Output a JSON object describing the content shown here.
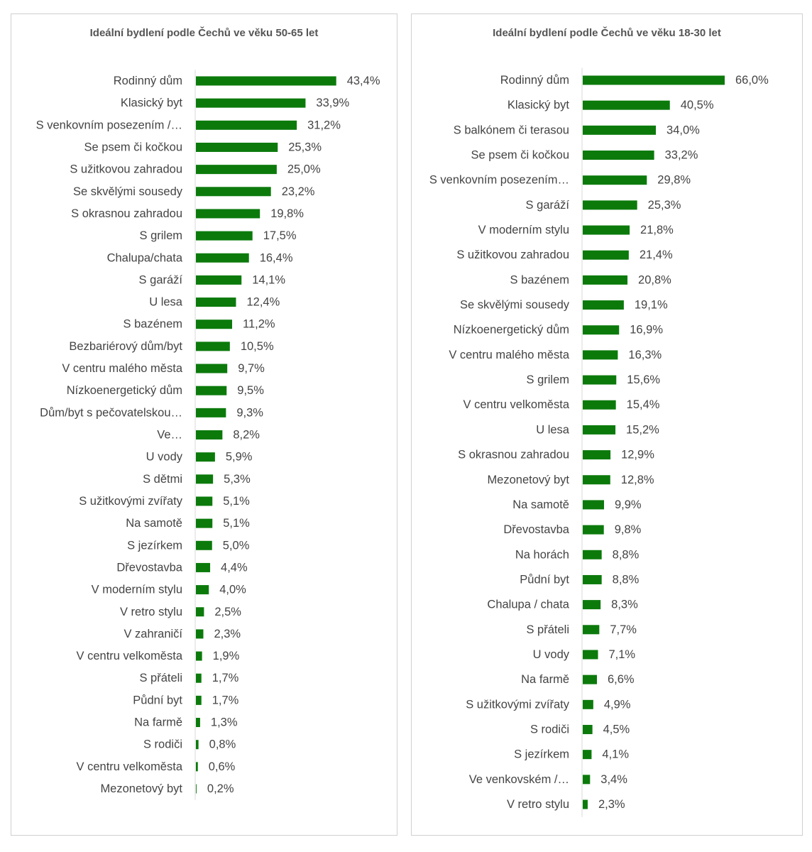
{
  "colors": {
    "bar": "#0b7a0b",
    "axis": "#d9d9d9",
    "text": "#444444"
  },
  "chart_data": [
    {
      "type": "bar",
      "orientation": "horizontal",
      "title": "Ideální bydlení podle Čechů ve věku 50-65 let",
      "xlim": [
        0,
        45
      ],
      "categories": [
        "Rodinný dům",
        "Klasický byt",
        "S venkovním posezením /…",
        "Se psem či kočkou",
        "S užitkovou zahradou",
        "Se skvělými sousedy",
        "S okrasnou zahradou",
        "S grilem",
        "Chalupa/chata",
        "S garáží",
        "U lesa",
        "S bazénem",
        "Bezbariérový dům/byt",
        "V centru malého města",
        "Nízkoenergetický dům",
        "Dům/byt s pečovatelskou…",
        "Ve…",
        "U vody",
        "S dětmi",
        "S užitkovými zvířaty",
        "Na samotě",
        "S jezírkem",
        "Dřevostavba",
        "V moderním stylu",
        "V retro stylu",
        "V zahraničí",
        "V centru velkoměsta",
        "S přáteli",
        "Půdní byt",
        "Na farmě",
        "S rodiči",
        "V centru velkoměsta",
        "Mezonetový byt"
      ],
      "values": [
        43.4,
        33.9,
        31.2,
        25.3,
        25.0,
        23.2,
        19.8,
        17.5,
        16.4,
        14.1,
        12.4,
        11.2,
        10.5,
        9.7,
        9.5,
        9.3,
        8.2,
        5.9,
        5.3,
        5.1,
        5.1,
        5.0,
        4.4,
        4.0,
        2.5,
        2.3,
        1.9,
        1.7,
        1.7,
        1.3,
        0.8,
        0.6,
        0.2
      ],
      "value_labels": [
        "43,4%",
        "33,9%",
        "31,2%",
        "25,3%",
        "25,0%",
        "23,2%",
        "19,8%",
        "17,5%",
        "16,4%",
        "14,1%",
        "12,4%",
        "11,2%",
        "10,5%",
        "9,7%",
        "9,5%",
        "9,3%",
        "8,2%",
        "5,9%",
        "5,3%",
        "5,1%",
        "5,1%",
        "5,0%",
        "4,4%",
        "4,0%",
        "2,5%",
        "2,3%",
        "1,9%",
        "1,7%",
        "1,7%",
        "1,3%",
        "0,8%",
        "0,6%",
        "0,2%"
      ],
      "grid": false,
      "legend": "none"
    },
    {
      "type": "bar",
      "orientation": "horizontal",
      "title": "Ideální bydlení podle Čechů ve věku 18-30 let",
      "xlim": [
        0,
        66
      ],
      "categories": [
        "Rodinný dům",
        "Klasický byt",
        "S balkónem či terasou",
        "Se psem či kočkou",
        "S venkovním posezením…",
        "S garáží",
        "V moderním stylu",
        "S užitkovou zahradou",
        "S bazénem",
        "Se skvělými sousedy",
        "Nízkoenergetický dům",
        "V centru malého města",
        "S grilem",
        "V centru velkoměsta",
        "U lesa",
        "S okrasnou zahradou",
        "Mezonetový byt",
        "Na samotě",
        "Dřevostavba",
        "Na horách",
        "Půdní byt",
        "Chalupa / chata",
        "S přáteli",
        "U vody",
        "Na farmě",
        "S užitkovými zvířaty",
        "S rodiči",
        "S jezírkem",
        "Ve venkovském /…",
        "V retro stylu"
      ],
      "values": [
        66.0,
        40.5,
        34.0,
        33.2,
        29.8,
        25.3,
        21.8,
        21.4,
        20.8,
        19.1,
        16.9,
        16.3,
        15.6,
        15.4,
        15.2,
        12.9,
        12.8,
        9.9,
        9.8,
        8.8,
        8.8,
        8.3,
        7.7,
        7.1,
        6.6,
        4.9,
        4.5,
        4.1,
        3.4,
        2.3
      ],
      "value_labels": [
        "66,0%",
        "40,5%",
        "34,0%",
        "33,2%",
        "29,8%",
        "25,3%",
        "21,8%",
        "21,4%",
        "20,8%",
        "19,1%",
        "16,9%",
        "16,3%",
        "15,6%",
        "15,4%",
        "15,2%",
        "12,9%",
        "12,8%",
        "9,9%",
        "9,8%",
        "8,8%",
        "8,8%",
        "8,3%",
        "7,7%",
        "7,1%",
        "6,6%",
        "4,9%",
        "4,5%",
        "4,1%",
        "3,4%",
        "2,3%"
      ],
      "grid": false,
      "legend": "none"
    }
  ]
}
